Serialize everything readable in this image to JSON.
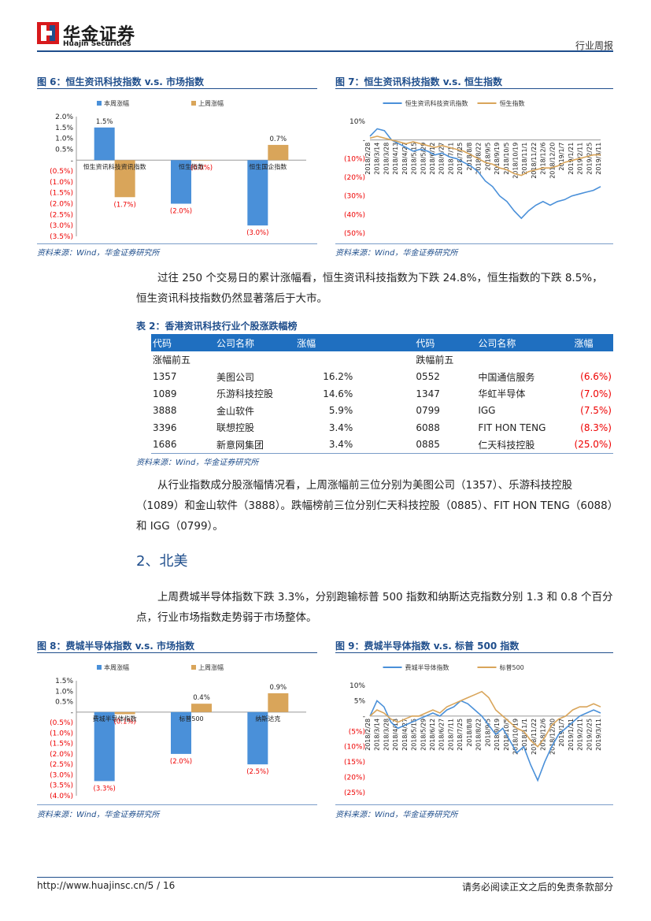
{
  "header": {
    "logo_cn": "华金证券",
    "logo_en": "Huajin Securities",
    "doc_type": "行业周报"
  },
  "fig6": {
    "title": "图 6：恒生资讯科技指数 v.s. 市场指数",
    "source": "资料来源：Wind，华金证券研究所"
  },
  "fig7": {
    "title": "图 7：恒生资讯科技指数 v.s. 恒生指数",
    "source": "资料来源：Wind，华金证券研究所"
  },
  "para1": "过往 250 个交易日的累计涨幅看，恒生资讯科技指数为下跌 24.8%，恒生指数的下跌 8.5%，恒生资讯科技指数仍然显著落后于大市。",
  "table": {
    "title": "表 2：香港资讯科技行业个股涨跌幅榜",
    "headers": [
      "代码",
      "公司名称",
      "涨幅",
      "代码",
      "公司名称",
      "涨幅"
    ],
    "left_group": "涨幅前五",
    "right_group": "跌幅前五",
    "rows": [
      [
        "1357",
        "美图公司",
        "16.2%",
        "0552",
        "中国通信服务",
        "(6.6%)"
      ],
      [
        "1089",
        "乐游科技控股",
        "14.6%",
        "1347",
        "华虹半导体",
        "(7.0%)"
      ],
      [
        "3888",
        "金山软件",
        "5.9%",
        "0799",
        "IGG",
        "(7.5%)"
      ],
      [
        "3396",
        "联想控股",
        "3.4%",
        "6088",
        "FIT HON TENG",
        "(8.3%)"
      ],
      [
        "1686",
        "新意网集团",
        "3.4%",
        "0885",
        "仁天科技控股",
        "(25.0%)"
      ]
    ],
    "source": "资料来源：Wind，华金证券研究所"
  },
  "para2": "从行业指数成分股涨幅情况看，上周涨幅前三位分别为美图公司（1357）、乐游科技控股（1089）和金山软件（3888）。跌幅榜前三位分别仁天科技控股（0885）、FIT HON TENG（6088）和 IGG（0799）。",
  "section2": "2、北美",
  "para3": "上周费城半导体指数下跌 3.3%，分别跑输标普 500 指数和纳斯达克指数分别 1.3 和 0.8 个百分点，行业市场指数走势弱于市场整体。",
  "fig8": {
    "title": "图 8：费城半导体指数 v.s. 市场指数",
    "source": "资料来源：Wind，华金证券研究所"
  },
  "fig9": {
    "title": "图 9：费城半导体指数 v.s. 标普 500 指数",
    "source": "资料来源：Wind，华金证券研究所"
  },
  "footer": {
    "url": "http://www.huajinsc.cn/",
    "page": "5 / 16",
    "disclaimer": "请务必阅读正文之后的免责条款部分"
  },
  "chart_data": [
    {
      "type": "bar",
      "categories": [
        "恒生资讯科技资讯指数",
        "恒生指数",
        "恒生国企指数"
      ],
      "series": [
        {
          "name": "本周涨幅",
          "values": [
            1.5,
            -2.0,
            -3.0
          ],
          "labels": [
            "1.5%",
            "(2.0%)",
            "(3.0%)"
          ]
        },
        {
          "name": "上周涨幅",
          "values": [
            -1.7,
            0.0,
            0.7
          ],
          "labels": [
            "(1.7%)",
            "(0.0%)",
            "0.7%"
          ]
        }
      ],
      "ylim": [
        -3.5,
        2.0
      ],
      "yticks": [
        "2.0%",
        "1.5%",
        "1.0%",
        "0.5%",
        "-",
        "(0.5%)",
        "(1.0%)",
        "(1.5%)",
        "(2.0%)",
        "(2.5%)",
        "(3.0%)",
        "(3.5%)"
      ],
      "legend": "top",
      "colors": [
        "#4a90d9",
        "#d9a55a"
      ]
    },
    {
      "type": "line",
      "series": [
        {
          "name": "恒生资讯科技资讯指数",
          "values": [
            2,
            6,
            5,
            0,
            -2,
            -4,
            -6,
            -5,
            -6,
            -8,
            -7,
            -9,
            -10,
            -12,
            -14,
            -17,
            -22,
            -25,
            -30,
            -33,
            -38,
            -42,
            -38,
            -35,
            -33,
            -35,
            -33,
            -32,
            -30,
            -29,
            -28,
            -27,
            -25
          ]
        },
        {
          "name": "恒生指数",
          "values": [
            1,
            2,
            1,
            0,
            -1,
            -2,
            -1,
            -2,
            -3,
            -4,
            -3,
            -4,
            -5,
            -6,
            -8,
            -10,
            -12,
            -13,
            -15,
            -16,
            -18,
            -19,
            -17,
            -16,
            -15,
            -15,
            -14,
            -12,
            -11,
            -10,
            -9,
            -8,
            -8
          ]
        }
      ],
      "x_ticks": [
        "2018/2/28",
        "2018/3/14",
        "2018/3/28",
        "2018/4/13",
        "2018/4/27",
        "2018/5/15",
        "2018/5/29",
        "2018/6/12",
        "2018/6/27",
        "2018/7/11",
        "2018/7/25",
        "2018/8/8",
        "2018/8/22",
        "2018/9/5",
        "2018/9/19",
        "2018/10/5",
        "2018/10/19",
        "2018/11/1",
        "2018/11/22",
        "2018/12/6",
        "2018/12/20",
        "2019/1/7",
        "2019/1/21",
        "2019/2/11",
        "2019/2/25",
        "2019/3/11"
      ],
      "yticks": [
        "10%",
        "-",
        "(10%)",
        "(20%)",
        "(30%)",
        "(40%)",
        "(50%)"
      ],
      "ylim": [
        -50,
        10
      ],
      "legend": "top",
      "colors": [
        "#4a90d9",
        "#d9a55a"
      ]
    },
    {
      "type": "bar",
      "categories": [
        "费城半导体指数",
        "标普500",
        "纳斯达克"
      ],
      "series": [
        {
          "name": "本周涨幅",
          "values": [
            -3.3,
            -2.0,
            -2.5
          ],
          "labels": [
            "(3.3%)",
            "(2.0%)",
            "(2.5%)"
          ]
        },
        {
          "name": "上周涨幅",
          "values": [
            -0.1,
            0.4,
            0.9
          ],
          "labels": [
            "(0.1%)",
            "0.4%",
            "0.9%"
          ]
        }
      ],
      "ylim": [
        -4.0,
        1.5
      ],
      "yticks": [
        "1.5%",
        "1.0%",
        "0.5%",
        "-",
        "(0.5%)",
        "(1.0%)",
        "(1.5%)",
        "(2.0%)",
        "(2.5%)",
        "(3.0%)",
        "(3.5%)",
        "(4.0%)"
      ],
      "legend": "top",
      "colors": [
        "#4a90d9",
        "#d9a55a"
      ]
    },
    {
      "type": "line",
      "series": [
        {
          "name": "费城半导体指数",
          "values": [
            0,
            5,
            3,
            -2,
            -4,
            -3,
            -2,
            -1,
            0,
            1,
            0,
            2,
            3,
            5,
            4,
            2,
            0,
            -3,
            -6,
            -4,
            -8,
            -12,
            -10,
            -16,
            -21,
            -15,
            -10,
            -6,
            -4,
            -2,
            0,
            1,
            2,
            1
          ]
        },
        {
          "name": "标普500",
          "values": [
            0,
            2,
            1,
            -1,
            -2,
            -1,
            0,
            0,
            1,
            2,
            1,
            3,
            4,
            5,
            6,
            7,
            8,
            6,
            2,
            0,
            -2,
            -4,
            -5,
            -8,
            -10,
            -7,
            -3,
            -1,
            0,
            2,
            3,
            3,
            4,
            3
          ]
        }
      ],
      "x_ticks": [
        "2018/2/28",
        "2018/3/14",
        "2018/3/28",
        "2018/4/13",
        "2018/4/27",
        "2018/5/15",
        "2018/5/29",
        "2018/6/12",
        "2018/6/27",
        "2018/7/11",
        "2018/7/25",
        "2018/8/8",
        "2018/8/22",
        "2018/9/5",
        "2018/9/19",
        "2018/10/5",
        "2018/10/19",
        "2018/11/1",
        "2018/11/22",
        "2018/12/6",
        "2018/12/20",
        "2019/1/7",
        "2019/1/21",
        "2019/2/11",
        "2019/2/25",
        "2019/3/11"
      ],
      "yticks": [
        "10%",
        "5%",
        "-",
        "(5%)",
        "(10%)",
        "(15%)",
        "(20%)",
        "(25%)"
      ],
      "ylim": [
        -25,
        10
      ],
      "legend": "top",
      "colors": [
        "#4a90d9",
        "#d9a55a"
      ]
    }
  ]
}
